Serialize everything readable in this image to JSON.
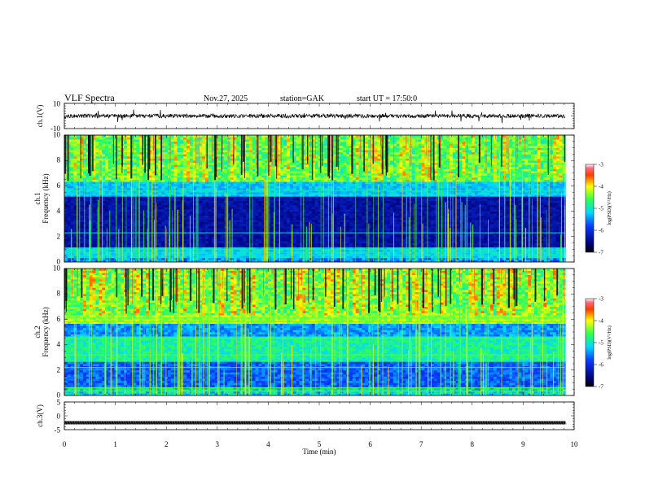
{
  "header": {
    "title": "VLF Spectra",
    "date": "Nov.27, 2025",
    "station": "station=GAK",
    "start_ut": "start UT =  17:50:0"
  },
  "chart_data": [
    {
      "id": "ch1-waveform",
      "type": "line",
      "ylabel": "ch.1(V)",
      "ylim": [
        -10,
        10
      ],
      "yticks": [
        10,
        -10
      ],
      "xlim": [
        0,
        10
      ],
      "baseline": 0,
      "trace_end_min": 9.83
    },
    {
      "id": "ch1-spectrogram",
      "type": "heatmap",
      "ylabel": "ch.1",
      "ylabel2": "Frequency (kHz)",
      "ylim": [
        0,
        10
      ],
      "yticks": [
        0,
        2,
        4,
        6,
        8,
        10
      ],
      "xlim": [
        0,
        10
      ],
      "colorbar": {
        "label": "log(PSD)(V²/Hz)",
        "range": [
          -7,
          -3
        ],
        "ticks": [
          "-3",
          "-4",
          "-5",
          "-6",
          "-7"
        ]
      }
    },
    {
      "id": "ch2-spectrogram",
      "type": "heatmap",
      "ylabel": "ch.2",
      "ylabel2": "Frequency (kHz)",
      "ylim": [
        0,
        10
      ],
      "yticks": [
        0,
        2,
        4,
        6,
        8,
        10
      ],
      "xlim": [
        0,
        10
      ],
      "colorbar": {
        "label": "log(PSD)(V²/Hz)",
        "range": [
          -7,
          -3
        ],
        "ticks": [
          "-3",
          "-4",
          "-5",
          "-6",
          "-7"
        ]
      }
    },
    {
      "id": "ch3-waveform",
      "type": "line",
      "ylabel": "ch.3(V)",
      "ylim": [
        -5,
        5
      ],
      "yticks": [
        5,
        0,
        -5
      ],
      "xlim": [
        0,
        10
      ],
      "baseline": -2.5,
      "trace_end_min": 9.83
    }
  ],
  "xaxis": {
    "label": "Time (min)",
    "ticks": [
      0,
      1,
      2,
      3,
      4,
      5,
      6,
      7,
      8,
      9,
      10
    ]
  }
}
